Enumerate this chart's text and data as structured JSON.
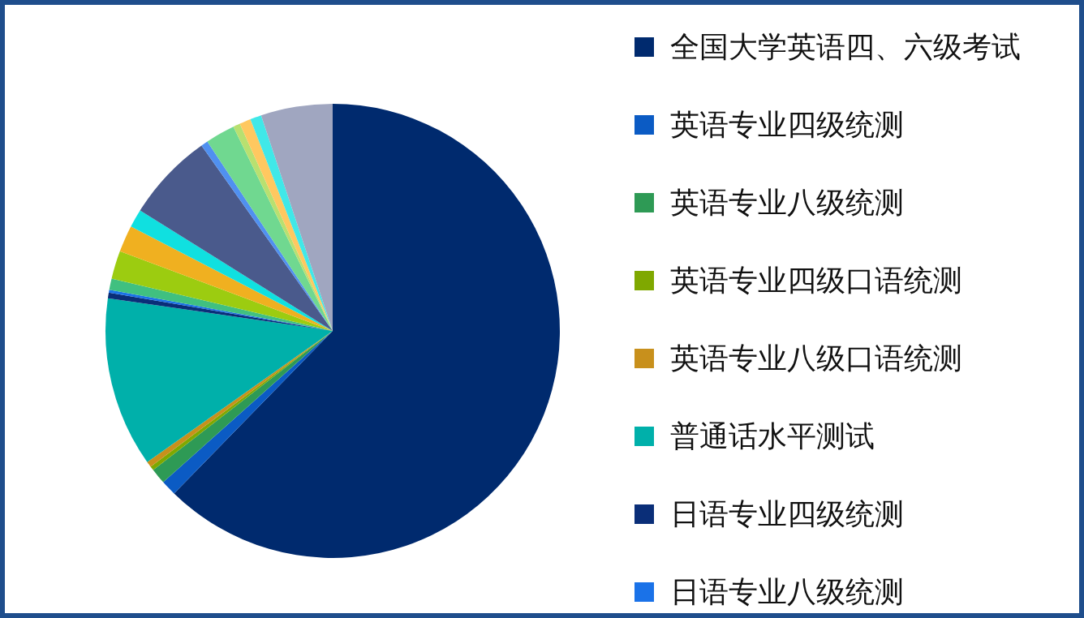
{
  "chart_data": {
    "type": "pie",
    "categories": [
      "全国大学英语四、六级考试",
      "英语专业四级统测",
      "英语专业八级统测",
      "英语专业四级口语统测",
      "英语专业八级口语统测",
      "普通话水平测试",
      "日语专业四级统测",
      "日语专业八级统测",
      null,
      null,
      null,
      null,
      null,
      null,
      null,
      null,
      null,
      null,
      null
    ],
    "values": [
      62.3,
      1.1,
      1.1,
      0.3,
      0.4,
      12.1,
      0.4,
      0.2,
      0.8,
      2.0,
      1.9,
      1.3,
      6.3,
      0.5,
      2.1,
      0.5,
      0.8,
      0.8,
      5.1
    ],
    "colors": [
      "#002a6e",
      "#0b5bc4",
      "#2e9a55",
      "#7fa800",
      "#c8901c",
      "#00b0aa",
      "#0a2e78",
      "#1a72e8",
      "#40c080",
      "#9ccc10",
      "#f0b020",
      "#10e0e0",
      "#4a5a8c",
      "#5090f0",
      "#70d890",
      "#b8e070",
      "#ffc860",
      "#40e8e8",
      "#a0a6c0"
    ],
    "legend": "right"
  }
}
